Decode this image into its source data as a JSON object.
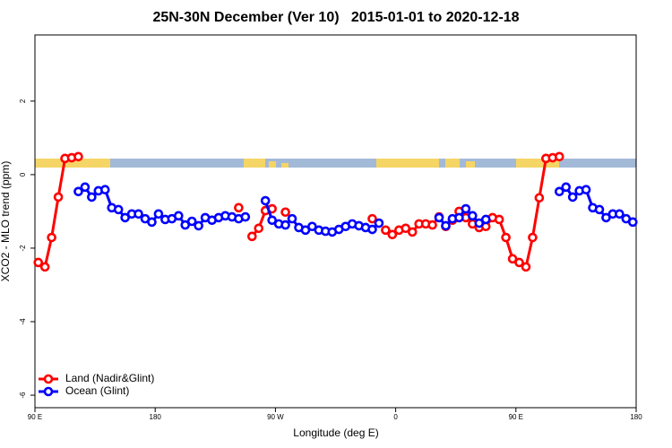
{
  "chart_data": {
    "type": "line",
    "title": "25N-30N December (Ver 10)   2015-01-01 to 2020-12-18",
    "x_label": "Longitude (deg E)",
    "y_label": "XCO2 - MLO trend (ppm)",
    "xlim": [
      90,
      540
    ],
    "ylim": [
      -6.34,
      3.8
    ],
    "xticks": [
      {
        "value": 90,
        "label": "90 E"
      },
      180,
      {
        "value": 270,
        "label": "90 W"
      },
      {
        "value": 360,
        "label": "0"
      },
      {
        "value": 450,
        "label": "90 E"
      },
      {
        "value": 540,
        "label": "180"
      }
    ],
    "yticks": [
      -6,
      -4,
      -2,
      0,
      2
    ],
    "legend": "bottomleft",
    "x": [
      92.5,
      97.5,
      102.5,
      107.5,
      112.5,
      117.5,
      122.5,
      127.5,
      132.5,
      137.5,
      142.5,
      147.5,
      152.5,
      157.5,
      162.5,
      167.5,
      172.5,
      177.5,
      182.5,
      187.5,
      192.5,
      197.5,
      202.5,
      207.5,
      212.5,
      217.5,
      222.5,
      227.5,
      232.5,
      237.5,
      242.5,
      247.5,
      252.5,
      257.5,
      262.5,
      267.5,
      272.5,
      277.5,
      282.5,
      287.5,
      292.5,
      297.5,
      302.5,
      307.5,
      312.5,
      317.5,
      322.5,
      327.5,
      332.5,
      337.5,
      342.5,
      347.5,
      352.5,
      357.5,
      362.5,
      367.5,
      372.5,
      377.5,
      382.5,
      387.5,
      392.5,
      397.5,
      402.5,
      407.5,
      412.5,
      417.5,
      422.5,
      427.5,
      432.5,
      437.5,
      442.5,
      447.5,
      452.5,
      457.5,
      462.5,
      467.5,
      472.5,
      477.5,
      482.5,
      487.5,
      492.5,
      497.5,
      502.5,
      507.5,
      512.5,
      517.5,
      522.5,
      527.5,
      532.5,
      537.5
    ],
    "series": [
      {
        "name": "Land (Nadir&Glint)",
        "color": "#ff0000",
        "values": [
          -2.39,
          -2.51,
          -1.71,
          -0.61,
          0.44,
          0.46,
          0.49,
          null,
          null,
          null,
          null,
          null,
          null,
          null,
          null,
          null,
          null,
          null,
          null,
          null,
          null,
          null,
          null,
          null,
          null,
          null,
          null,
          null,
          null,
          null,
          -0.9,
          null,
          -1.68,
          -1.46,
          -0.98,
          -0.93,
          null,
          -1.02,
          null,
          null,
          null,
          null,
          null,
          null,
          null,
          null,
          null,
          null,
          null,
          null,
          -1.2,
          null,
          -1.51,
          -1.63,
          -1.51,
          -1.46,
          -1.56,
          -1.34,
          -1.34,
          -1.37,
          -1.15,
          -1.41,
          -1.24,
          -1.0,
          -1.17,
          -1.34,
          -1.44,
          -1.41,
          -1.17,
          -1.22,
          -1.71,
          -2.29,
          -2.39,
          -2.51,
          -1.71,
          -0.63,
          0.44,
          0.46,
          0.49,
          null,
          null,
          null,
          null,
          null,
          null,
          null,
          null,
          null,
          null,
          null
        ]
      },
      {
        "name": "Ocean (Glint)",
        "color": "#0000ff",
        "values": [
          null,
          null,
          null,
          null,
          null,
          null,
          -0.46,
          -0.34,
          -0.61,
          -0.44,
          -0.41,
          -0.9,
          -0.95,
          -1.17,
          -1.07,
          -1.07,
          -1.2,
          -1.29,
          -1.07,
          -1.22,
          -1.2,
          -1.12,
          -1.37,
          -1.27,
          -1.39,
          -1.17,
          -1.24,
          -1.17,
          -1.12,
          -1.15,
          -1.2,
          -1.15,
          null,
          null,
          -0.71,
          -1.24,
          -1.34,
          -1.37,
          -1.2,
          -1.44,
          -1.51,
          -1.41,
          -1.51,
          -1.54,
          -1.56,
          -1.49,
          -1.41,
          -1.34,
          -1.39,
          -1.44,
          -1.49,
          -1.32,
          null,
          null,
          null,
          null,
          null,
          null,
          null,
          null,
          -1.17,
          -1.39,
          -1.2,
          -1.17,
          -0.93,
          -1.12,
          -1.32,
          -1.22,
          null,
          null,
          null,
          null,
          null,
          null,
          null,
          null,
          null,
          null,
          -0.46,
          -0.34,
          -0.61,
          -0.44,
          -0.41,
          -0.9,
          -0.95,
          -1.17,
          -1.07,
          -1.07,
          -1.2,
          -1.29
        ]
      }
    ]
  }
}
